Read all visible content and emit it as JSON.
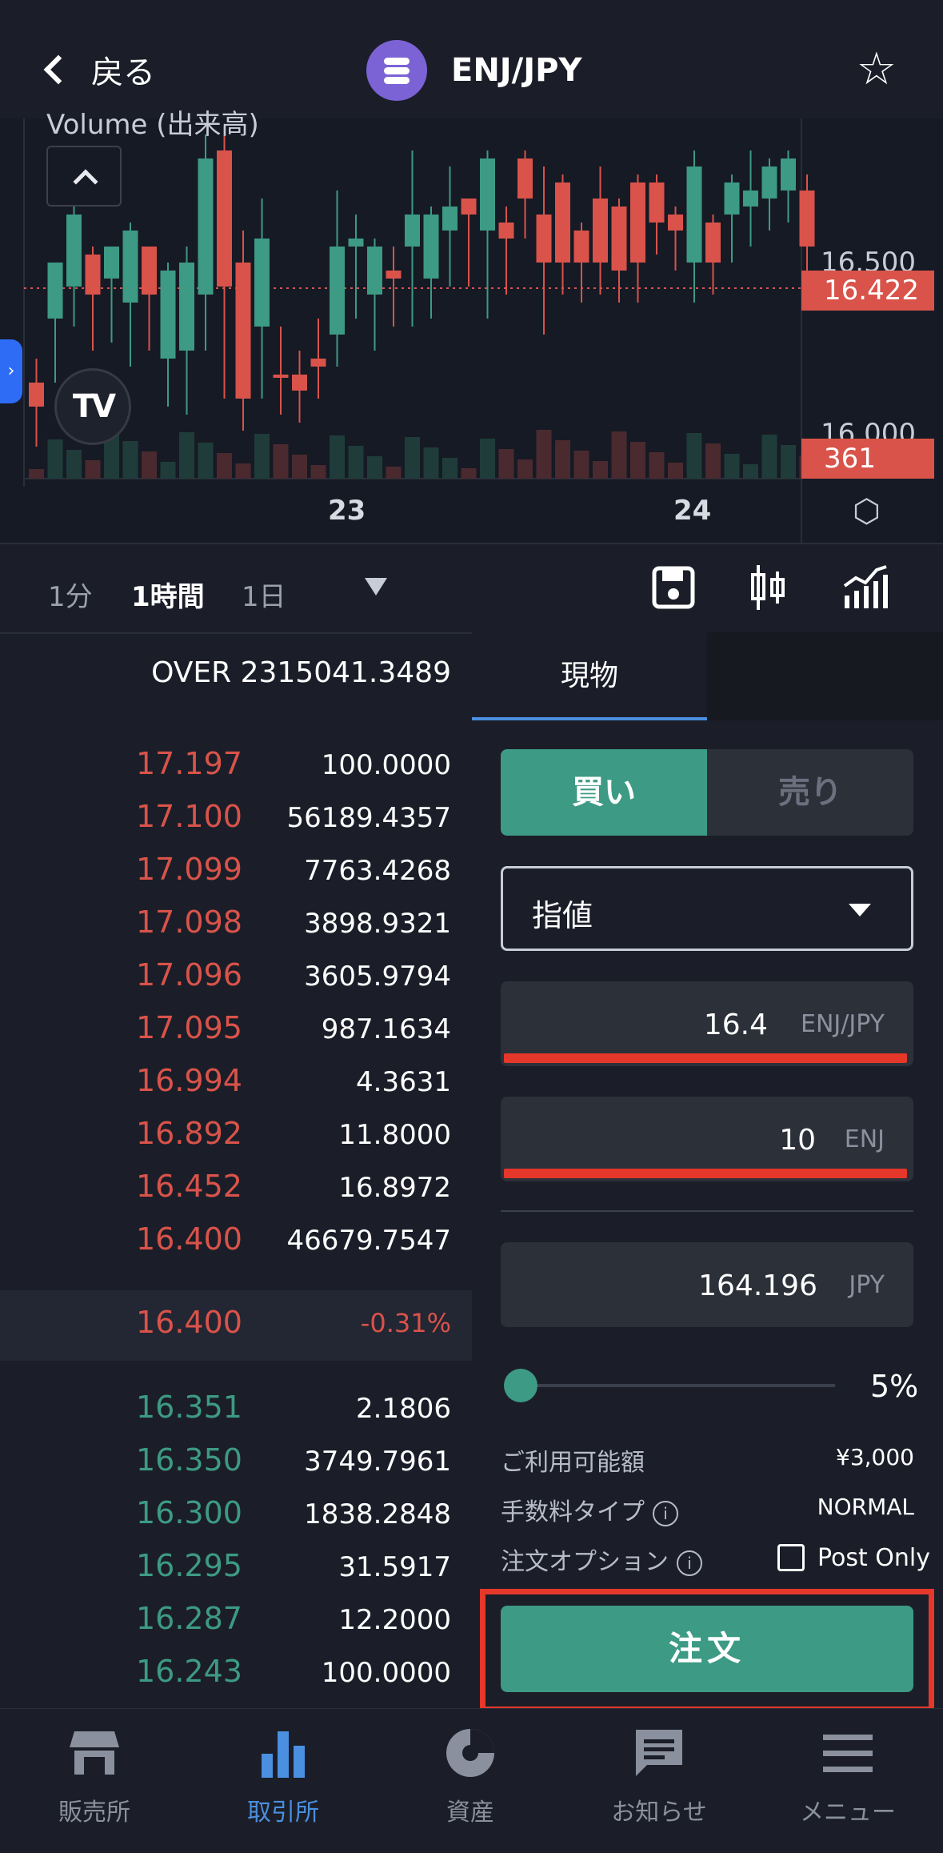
{
  "header": {
    "back_label": "戻る",
    "pair": "ENJ/JPY",
    "logo_icon": "enjin-coin-logo",
    "star_icon": "star-outline-icon"
  },
  "chart": {
    "top_label": "Volume (出来高)",
    "price_axis": [
      "16.500",
      "16.000"
    ],
    "last_price_tag": "16.422",
    "volume_tag": "361",
    "dates": [
      "23",
      "24"
    ],
    "tv_logo": "TV",
    "colors": {
      "up": "#3d9a84",
      "down": "#d9534a"
    }
  },
  "toolbar": {
    "intervals": [
      "1分",
      "1時間",
      "1日"
    ],
    "active_interval": "1時間"
  },
  "orderbook": {
    "header": "OVER 2315041.3489",
    "asks": [
      {
        "price": "17.197",
        "amount": "100.0000"
      },
      {
        "price": "17.100",
        "amount": "56189.4357"
      },
      {
        "price": "17.099",
        "amount": "7763.4268"
      },
      {
        "price": "17.098",
        "amount": "3898.9321"
      },
      {
        "price": "17.096",
        "amount": "3605.9794"
      },
      {
        "price": "17.095",
        "amount": "987.1634"
      },
      {
        "price": "16.994",
        "amount": "4.3631"
      },
      {
        "price": "16.892",
        "amount": "11.8000"
      },
      {
        "price": "16.452",
        "amount": "16.8972"
      },
      {
        "price": "16.400",
        "amount": "46679.7547"
      }
    ],
    "mid": {
      "price": "16.400",
      "change": "-0.31%"
    },
    "bids": [
      {
        "price": "16.351",
        "amount": "2.1806"
      },
      {
        "price": "16.350",
        "amount": "3749.7961"
      },
      {
        "price": "16.300",
        "amount": "1838.2848"
      },
      {
        "price": "16.295",
        "amount": "31.5917"
      },
      {
        "price": "16.287",
        "amount": "12.2000"
      },
      {
        "price": "16.243",
        "amount": "100.0000"
      }
    ]
  },
  "order_panel": {
    "tab": "現物",
    "buy_label": "買い",
    "sell_label": "売り",
    "order_type": "指値",
    "price": {
      "value": "16.4",
      "unit": "ENJ/JPY"
    },
    "quantity": {
      "value": "10",
      "unit": "ENJ"
    },
    "total": {
      "value": "164.196",
      "unit": "JPY"
    },
    "slider_percent": "5%",
    "available_label": "ご利用可能額",
    "available_value": "¥3,000",
    "fee_type_label": "手数料タイプ",
    "fee_type_value": "NORMAL",
    "order_option_label": "注文オプション",
    "post_only_label": "Post Only",
    "submit_label": "注文"
  },
  "bottom_nav": [
    {
      "label": "販売所",
      "icon": "store-icon",
      "active": false
    },
    {
      "label": "取引所",
      "icon": "bar-chart-icon",
      "active": true
    },
    {
      "label": "資産",
      "icon": "pie-chart-icon",
      "active": false
    },
    {
      "label": "お知らせ",
      "icon": "message-icon",
      "active": false
    },
    {
      "label": "メニュー",
      "icon": "menu-icon",
      "active": false
    }
  ]
}
